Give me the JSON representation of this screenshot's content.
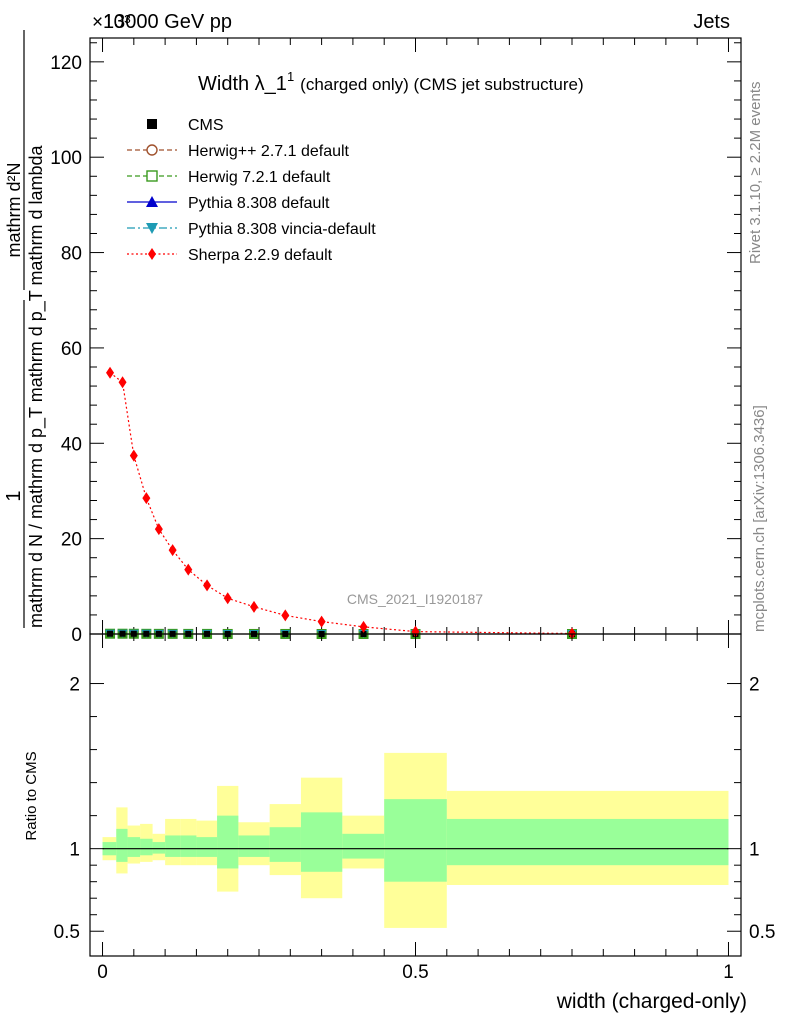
{
  "header": {
    "left": "13000 GeV pp",
    "right": "Jets",
    "multiplier": "×10³"
  },
  "side_text": {
    "rivet": "Rivet 3.1.10, ≥ 2.2M events",
    "mcplots": "mcplots.cern.ch [arXiv:1306.3436]"
  },
  "watermark": "CMS_2021_I1920187",
  "chart_data": [
    {
      "type": "line",
      "title_main": "Width λ_1",
      "title_sup": "1",
      "title_rest": "(charged only) (CMS jet substructure)",
      "ylabel": {
        "frac_left_num": "1",
        "frac_left_den": "mathrm d N / mathrm d p_T mathrm d p_T mathrm d lambda",
        "frac_right_num": "mathrm d²N"
      },
      "ylim": [
        0,
        125
      ],
      "yticks": [
        0,
        20,
        40,
        60,
        80,
        100,
        120
      ],
      "ytick_labels": [
        "0",
        "20",
        "40",
        "60",
        "80",
        "100",
        "120"
      ],
      "xlim": [
        -0.02,
        1.02
      ],
      "legend": [
        {
          "label": "CMS",
          "color": "#000000",
          "marker": "square",
          "line": "none"
        },
        {
          "label": "Herwig++ 2.7.1 default",
          "color": "#a0522d",
          "marker": "circle-open",
          "line": "dashed"
        },
        {
          "label": "Herwig 7.2.1 default",
          "color": "#3a9a1e",
          "marker": "square-open",
          "line": "dashed"
        },
        {
          "label": "Pythia 8.308 default",
          "color": "#0000cc",
          "marker": "triangle-up",
          "line": "solid"
        },
        {
          "label": "Pythia 8.308 vincia-default",
          "color": "#1e9bb4",
          "marker": "triangle-down",
          "line": "dashdot"
        },
        {
          "label": "Sherpa 2.2.9 default",
          "color": "#ff0000",
          "marker": "diamond",
          "line": "dotted"
        }
      ],
      "series": [
        {
          "name": "Sherpa 2.2.9 default",
          "x": [
            0.012,
            0.032,
            0.05,
            0.07,
            0.09,
            0.112,
            0.137,
            0.167,
            0.2,
            0.242,
            0.292,
            0.35,
            0.417,
            0.5,
            0.75
          ],
          "y": [
            54.8,
            52.8,
            37.4,
            28.5,
            22.0,
            17.6,
            13.5,
            10.2,
            7.5,
            5.7,
            3.9,
            2.6,
            1.5,
            0.5,
            0.1
          ]
        },
        {
          "name": "CMS",
          "x": [
            0.012,
            0.032,
            0.05,
            0.07,
            0.09,
            0.112,
            0.137,
            0.167,
            0.2,
            0.242,
            0.292,
            0.35,
            0.417,
            0.5,
            0.75
          ],
          "y": [
            0.06,
            0.06,
            0.05,
            0.04,
            0.03,
            0.03,
            0.02,
            0.02,
            0.01,
            0.01,
            0.01,
            0.0,
            0.0,
            0.0,
            0.0
          ]
        }
      ]
    },
    {
      "type": "area",
      "ylabel": "Ratio to CMS",
      "xlabel": "width (charged-only)",
      "ylim": [
        0.35,
        2.3
      ],
      "yticks": [
        0.5,
        1,
        2
      ],
      "ytick_labels": [
        "0.5",
        "1",
        "2"
      ],
      "xlim": [
        -0.02,
        1.02
      ],
      "xticks": [
        0,
        0.5,
        1
      ],
      "xtick_labels": [
        "0",
        "0.5",
        "1"
      ],
      "reference_line": 1,
      "bins": [
        {
          "lo": 0.0,
          "hi": 0.022,
          "green": [
            0.96,
            1.04
          ],
          "yellow": [
            0.93,
            1.07
          ]
        },
        {
          "lo": 0.022,
          "hi": 0.04,
          "green": [
            0.92,
            1.12
          ],
          "yellow": [
            0.85,
            1.25
          ]
        },
        {
          "lo": 0.04,
          "hi": 0.06,
          "green": [
            0.95,
            1.07
          ],
          "yellow": [
            0.91,
            1.14
          ]
        },
        {
          "lo": 0.06,
          "hi": 0.08,
          "green": [
            0.96,
            1.06
          ],
          "yellow": [
            0.92,
            1.15
          ]
        },
        {
          "lo": 0.08,
          "hi": 0.1,
          "green": [
            0.97,
            1.04
          ],
          "yellow": [
            0.93,
            1.09
          ]
        },
        {
          "lo": 0.1,
          "hi": 0.125,
          "green": [
            0.95,
            1.08
          ],
          "yellow": [
            0.9,
            1.18
          ]
        },
        {
          "lo": 0.125,
          "hi": 0.15,
          "green": [
            0.95,
            1.08
          ],
          "yellow": [
            0.9,
            1.18
          ]
        },
        {
          "lo": 0.15,
          "hi": 0.183,
          "green": [
            0.95,
            1.07
          ],
          "yellow": [
            0.9,
            1.17
          ]
        },
        {
          "lo": 0.183,
          "hi": 0.217,
          "green": [
            0.88,
            1.2
          ],
          "yellow": [
            0.74,
            1.38
          ]
        },
        {
          "lo": 0.217,
          "hi": 0.267,
          "green": [
            0.95,
            1.08
          ],
          "yellow": [
            0.9,
            1.16
          ]
        },
        {
          "lo": 0.267,
          "hi": 0.317,
          "green": [
            0.92,
            1.13
          ],
          "yellow": [
            0.84,
            1.27
          ]
        },
        {
          "lo": 0.317,
          "hi": 0.383,
          "green": [
            0.86,
            1.22
          ],
          "yellow": [
            0.7,
            1.43
          ]
        },
        {
          "lo": 0.383,
          "hi": 0.45,
          "green": [
            0.94,
            1.09
          ],
          "yellow": [
            0.88,
            1.2
          ]
        },
        {
          "lo": 0.45,
          "hi": 0.55,
          "green": [
            0.8,
            1.3
          ],
          "yellow": [
            0.52,
            1.58
          ]
        },
        {
          "lo": 0.55,
          "hi": 1.0,
          "green": [
            0.9,
            1.18
          ],
          "yellow": [
            0.78,
            1.35
          ]
        }
      ]
    }
  ]
}
